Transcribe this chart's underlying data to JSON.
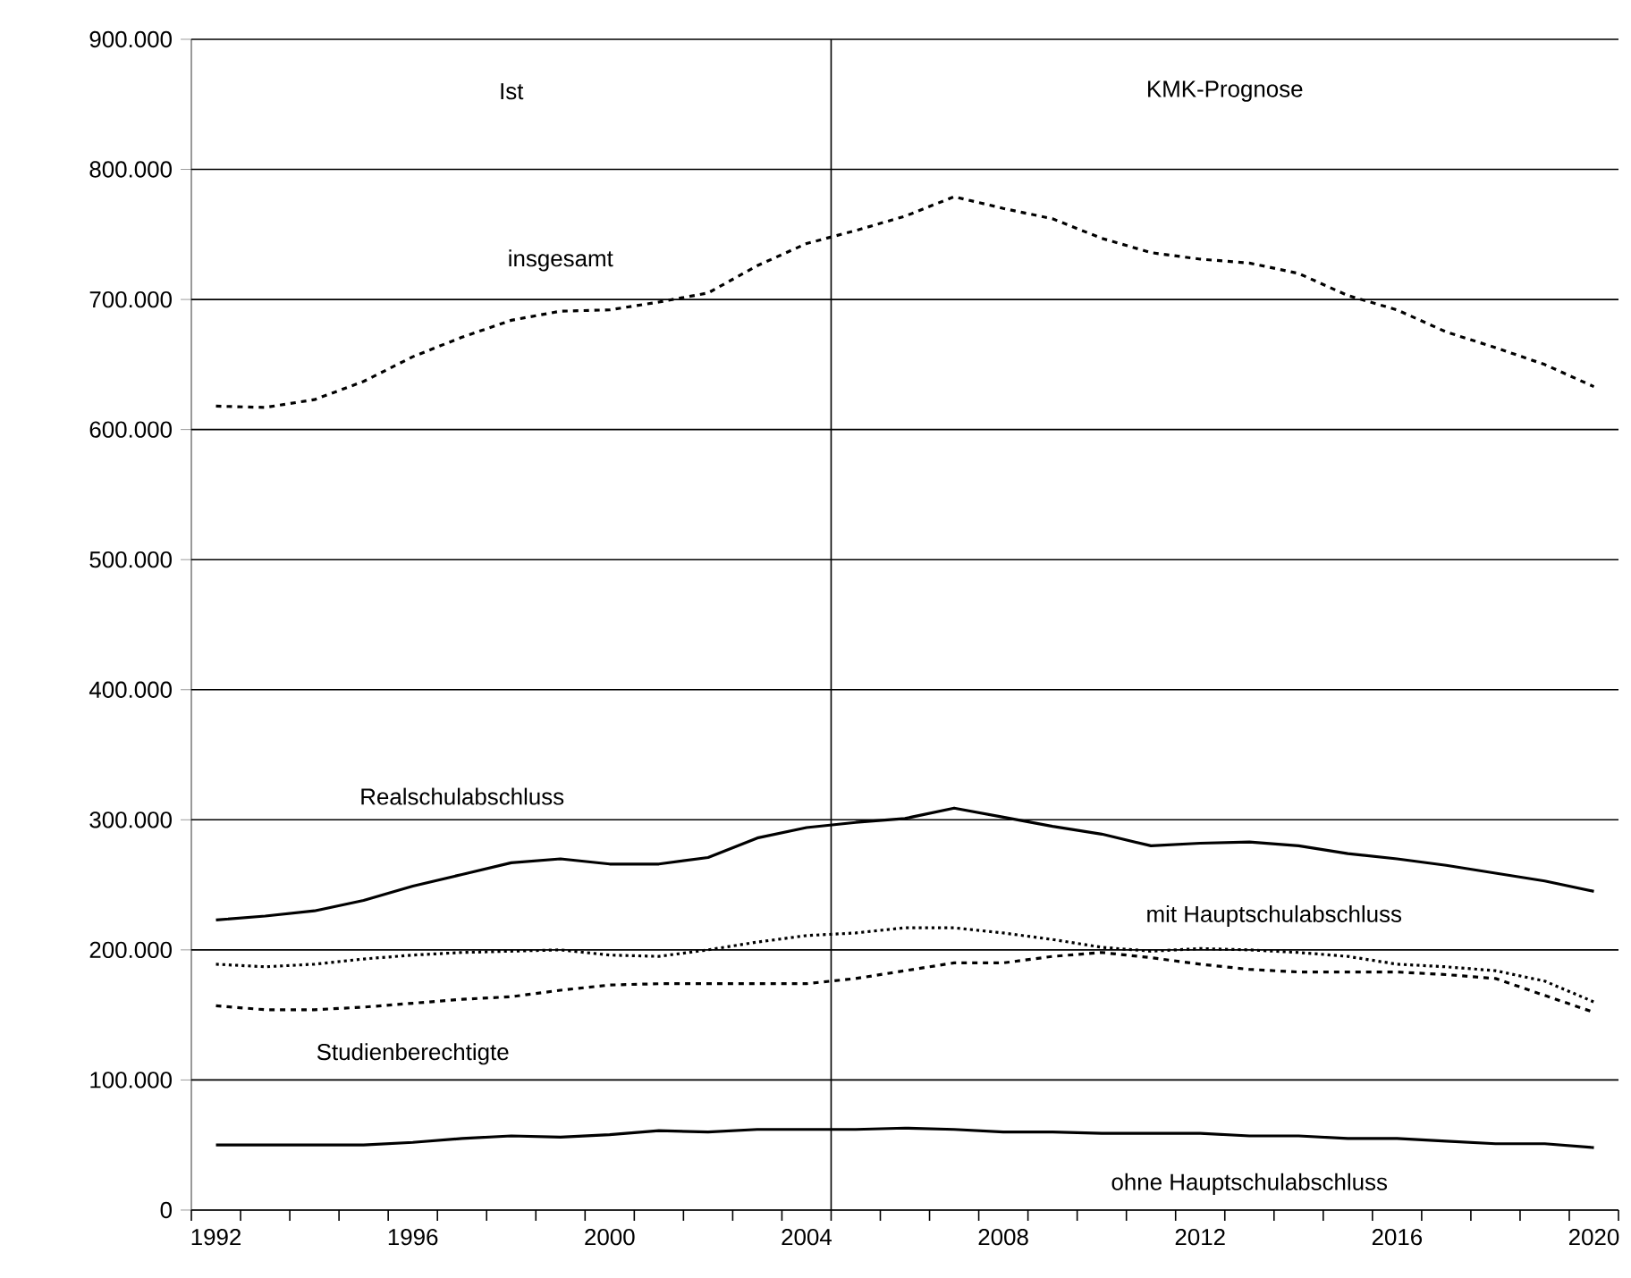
{
  "chart_data": {
    "type": "line",
    "x": [
      1992,
      1993,
      1994,
      1995,
      1996,
      1997,
      1998,
      1999,
      2000,
      2001,
      2002,
      2003,
      2004,
      2005,
      2006,
      2007,
      2008,
      2009,
      2010,
      2011,
      2012,
      2013,
      2014,
      2015,
      2016,
      2017,
      2018,
      2019,
      2020
    ],
    "series": [
      {
        "name": "insgesamt",
        "color": "#000000",
        "line_style": "dashed",
        "values": [
          618000,
          617000,
          623000,
          637000,
          656000,
          671000,
          684000,
          691000,
          692000,
          698000,
          705000,
          726000,
          743000,
          753000,
          764000,
          779000,
          770000,
          762000,
          747000,
          736000,
          731000,
          728000,
          720000,
          703000,
          692000,
          675000,
          663000,
          650000,
          633000
        ]
      },
      {
        "name": "Realschulabschluss",
        "color": "#000000",
        "line_style": "solid",
        "values": [
          223000,
          226000,
          230000,
          238000,
          249000,
          258000,
          267000,
          270000,
          266000,
          266000,
          271000,
          286000,
          294000,
          298000,
          301000,
          309000,
          302000,
          295000,
          289000,
          280000,
          282000,
          283000,
          280000,
          274000,
          270000,
          265000,
          259000,
          253000,
          245000
        ]
      },
      {
        "name": "mit Hauptschulabschluss",
        "color": "#000000",
        "line_style": "dotted",
        "values": [
          189000,
          187000,
          189000,
          193000,
          196000,
          198000,
          199000,
          200000,
          196000,
          195000,
          200000,
          206000,
          211000,
          213000,
          217000,
          217000,
          213000,
          208000,
          202000,
          199000,
          201000,
          200000,
          198000,
          195000,
          189000,
          187000,
          184000,
          176000,
          160000
        ]
      },
      {
        "name": "Studienberechtigte",
        "color": "#000000",
        "line_style": "dashed",
        "values": [
          157000,
          154000,
          154000,
          156000,
          159000,
          162000,
          164000,
          169000,
          173000,
          174000,
          174000,
          174000,
          174000,
          178000,
          184000,
          190000,
          190000,
          195000,
          198000,
          194000,
          189000,
          185000,
          183000,
          183000,
          183000,
          181000,
          178000,
          165000,
          152000
        ]
      },
      {
        "name": "ohne Hauptschulabschluss",
        "color": "#000000",
        "line_style": "solid",
        "values": [
          50000,
          50000,
          50000,
          50000,
          52000,
          55000,
          57000,
          56000,
          58000,
          61000,
          60000,
          62000,
          62000,
          62000,
          63000,
          62000,
          60000,
          60000,
          59000,
          59000,
          59000,
          57000,
          57000,
          55000,
          55000,
          53000,
          51000,
          51000,
          48000
        ]
      }
    ],
    "xlim": [
      1991.5,
      2020.5
    ],
    "xticks": [
      1992,
      1996,
      2000,
      2004,
      2008,
      2012,
      2016,
      2020,
      {
        "value": 1991.5,
        "label": null
      },
      {
        "value": 1992.5,
        "label": null
      },
      {
        "value": 1993.5,
        "label": null
      },
      {
        "value": 1994.5,
        "label": null
      },
      {
        "value": 1995.5,
        "label": null
      },
      {
        "value": 1996.5,
        "label": null
      },
      {
        "value": 1997.5,
        "label": null
      },
      {
        "value": 1998.5,
        "label": null
      },
      {
        "value": 1999.5,
        "label": null
      },
      {
        "value": 2000.5,
        "label": null
      },
      {
        "value": 2001.5,
        "label": null
      },
      {
        "value": 2002.5,
        "label": null
      },
      {
        "value": 2003.5,
        "label": null
      },
      {
        "value": 2004.5,
        "label": null
      },
      {
        "value": 2005.5,
        "label": null
      },
      {
        "value": 2006.5,
        "label": null
      },
      {
        "value": 2007.5,
        "label": null
      },
      {
        "value": 2008.5,
        "label": null
      },
      {
        "value": 2009.5,
        "label": null
      },
      {
        "value": 2010.5,
        "label": null
      },
      {
        "value": 2011.5,
        "label": null
      },
      {
        "value": 2012.5,
        "label": null
      },
      {
        "value": 2013.5,
        "label": null
      },
      {
        "value": 2014.5,
        "label": null
      },
      {
        "value": 2015.5,
        "label": null
      },
      {
        "value": 2016.5,
        "label": null
      },
      {
        "value": 2017.5,
        "label": null
      },
      {
        "value": 2018.5,
        "label": null
      },
      {
        "value": 2019.5,
        "label": null
      },
      {
        "value": 2020.5,
        "label": null
      }
    ],
    "ylim": [
      0,
      900000
    ],
    "yticks": [
      {
        "value": 0,
        "label": "0"
      },
      {
        "value": 100000,
        "label": "100.000"
      },
      {
        "value": 200000,
        "label": "200.000"
      },
      {
        "value": 300000,
        "label": "300.000"
      },
      {
        "value": 400000,
        "label": "400.000"
      },
      {
        "value": 500000,
        "label": "500.000"
      },
      {
        "value": 600000,
        "label": "600.000"
      },
      {
        "value": 700000,
        "label": "700.000"
      },
      {
        "value": 800000,
        "label": "800.000"
      },
      {
        "value": 900000,
        "label": "900.000"
      }
    ],
    "grid": "y",
    "marker": "none",
    "ref_lines": [
      {
        "axis": "x",
        "value": 2004.5,
        "color": "#000000",
        "line_style": "solid"
      }
    ],
    "annotations": [
      "Ist",
      "KMK-Prognose"
    ]
  }
}
